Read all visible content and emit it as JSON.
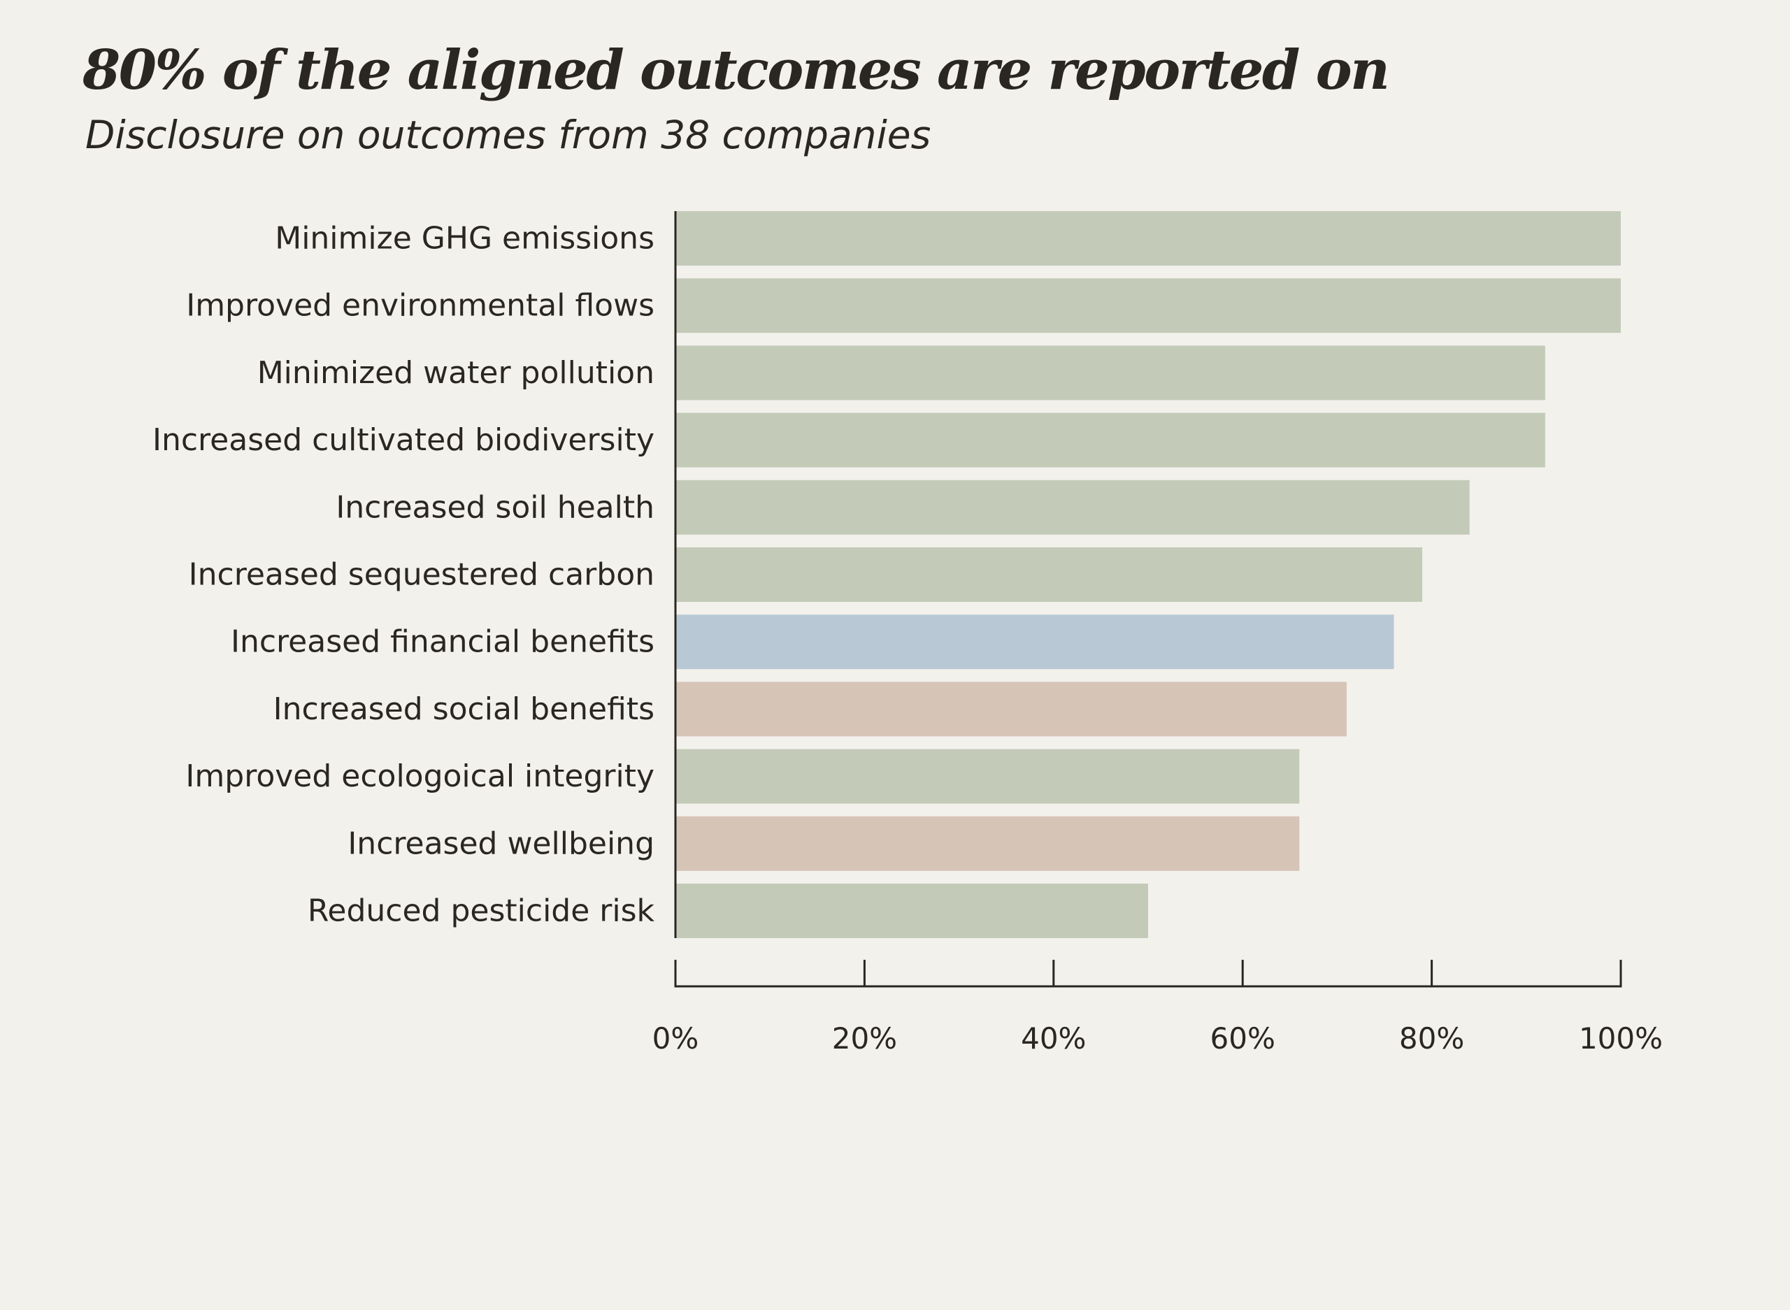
{
  "chart_data": {
    "type": "bar",
    "orientation": "horizontal",
    "title": "80% of the aligned outcomes are reported on",
    "subtitle": "Disclosure on outcomes from 38 companies",
    "categories": [
      "Minimize GHG emissions",
      "Improved environmental flows",
      "Minimized water pollution",
      "Increased cultivated biodiversity",
      "Increased soil health",
      "Increased sequestered carbon",
      "Increased financial benefits",
      "Increased social benefits",
      "Improved ecologoical integrity",
      "Increased wellbeing",
      "Reduced pesticide risk"
    ],
    "values": [
      100,
      100,
      92,
      92,
      84,
      79,
      76,
      71,
      66,
      66,
      50
    ],
    "bar_colors": [
      "#c3cbb8",
      "#c3cbb8",
      "#c3cbb8",
      "#c3cbb8",
      "#c3cbb8",
      "#c3cbb8",
      "#b8c8d5",
      "#d6c4b7",
      "#c3cbb8",
      "#d6c4b7",
      "#c3cbb8"
    ],
    "xlim": [
      0,
      100
    ],
    "x_ticks": [
      0,
      20,
      40,
      60,
      80,
      100
    ],
    "x_tick_labels": [
      "0%",
      "20%",
      "40%",
      "60%",
      "80%",
      "100%"
    ],
    "xlabel": "",
    "ylabel": "",
    "grid": false,
    "legend": "none",
    "axis_color": "#2a2622"
  }
}
